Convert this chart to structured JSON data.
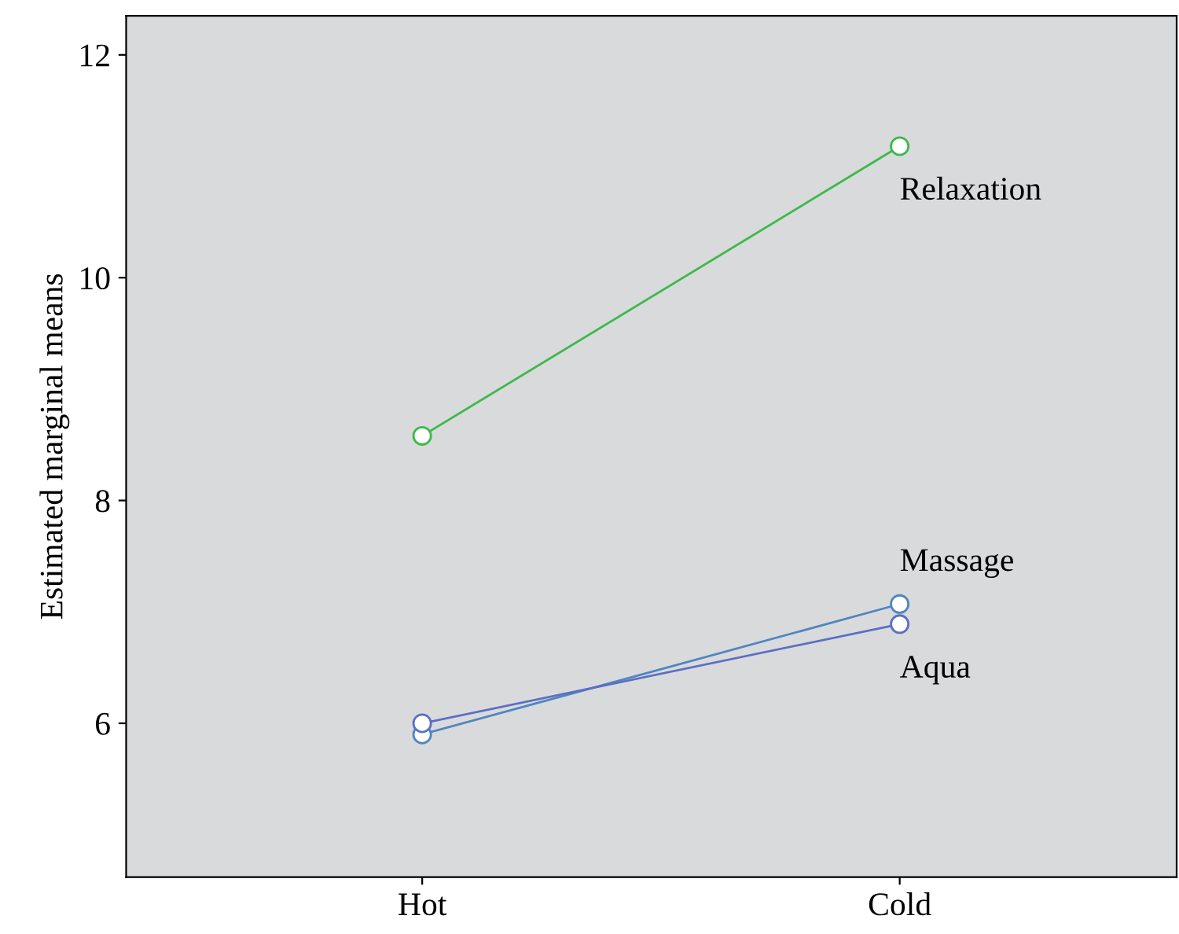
{
  "chart_data": {
    "type": "line",
    "ylabel": "Estimated marginal means",
    "categories": [
      "Hot",
      "Cold"
    ],
    "series": [
      {
        "name": "Relaxation",
        "color": "#3cb94a",
        "values": [
          8.58,
          11.18
        ]
      },
      {
        "name": "Massage",
        "color": "#4f86c0",
        "values": [
          5.9,
          7.07
        ]
      },
      {
        "name": "Aqua",
        "color": "#5b6fc4",
        "values": [
          6.0,
          6.89
        ]
      }
    ],
    "ylim": [
      4.62,
      12.35
    ],
    "yticks": [
      6,
      8,
      10,
      12
    ],
    "marker": "circle",
    "line_style": "solid",
    "grid": false,
    "legend": false
  }
}
